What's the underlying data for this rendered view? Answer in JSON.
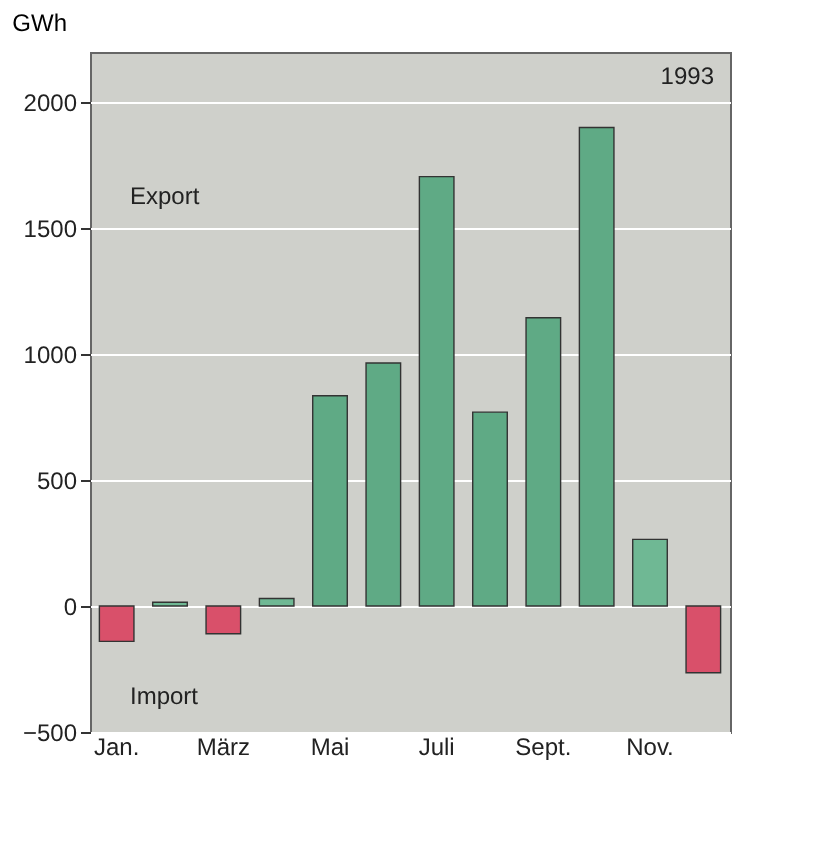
{
  "chart_data": {
    "type": "bar",
    "ylabel": "GWh",
    "categories": [
      "Jan.",
      null,
      "März",
      null,
      "Mai",
      null,
      "Juli",
      null,
      "Sept.",
      null,
      "Nov.",
      null
    ],
    "values": [
      -140,
      15,
      -110,
      30,
      835,
      965,
      1705,
      770,
      1145,
      1900,
      265,
      -265
    ],
    "colors": [
      "#d9506a",
      "#6fb894",
      "#d9506a",
      "#6fb894",
      "#5faa85",
      "#5faa85",
      "#5faa85",
      "#5faa85",
      "#5faa85",
      "#5faa85",
      "#6fb894",
      "#d9506a"
    ],
    "ylim": [
      -500,
      2200
    ],
    "yticks": [
      -500,
      0,
      500,
      1000,
      1500,
      2000
    ],
    "grid": "y",
    "annotations": [
      "1993",
      "Export",
      "Import"
    ]
  }
}
